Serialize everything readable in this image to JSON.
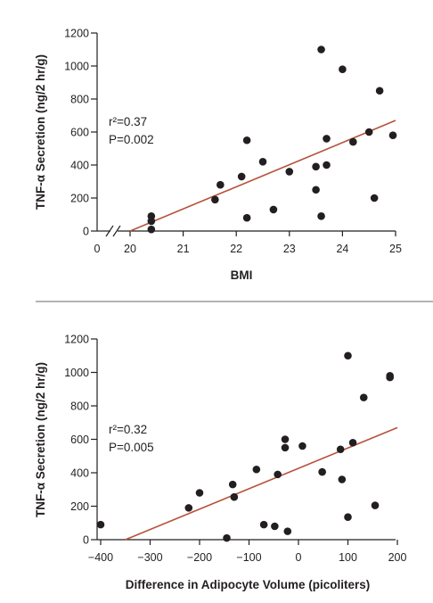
{
  "chart_data": [
    {
      "type": "scatter",
      "ylabel": "TNF-α Secretion (ng/2 hr/g)",
      "xlabel": "BMI",
      "xticks": [
        "0",
        "20",
        "21",
        "22",
        "23",
        "24",
        "25"
      ],
      "yticks": [
        "0",
        "200",
        "400",
        "600",
        "800",
        "1000",
        "1200"
      ],
      "xlim": [
        20,
        25
      ],
      "ylim": [
        0,
        1200
      ],
      "axis_break": "x axis broken between 0 and 20",
      "annotation_r2": "r²=0.37",
      "annotation_p": "P=0.002",
      "points": [
        {
          "x": 20.4,
          "y": 90
        },
        {
          "x": 20.4,
          "y": 60
        },
        {
          "x": 20.4,
          "y": 10
        },
        {
          "x": 21.6,
          "y": 190
        },
        {
          "x": 21.7,
          "y": 280
        },
        {
          "x": 22.1,
          "y": 330
        },
        {
          "x": 22.2,
          "y": 550
        },
        {
          "x": 22.2,
          "y": 80
        },
        {
          "x": 22.5,
          "y": 420
        },
        {
          "x": 22.7,
          "y": 130
        },
        {
          "x": 23.0,
          "y": 360
        },
        {
          "x": 23.5,
          "y": 390
        },
        {
          "x": 23.5,
          "y": 250
        },
        {
          "x": 23.6,
          "y": 1100
        },
        {
          "x": 23.6,
          "y": 90
        },
        {
          "x": 23.7,
          "y": 560
        },
        {
          "x": 23.7,
          "y": 400
        },
        {
          "x": 24.0,
          "y": 980
        },
        {
          "x": 24.2,
          "y": 540
        },
        {
          "x": 24.5,
          "y": 600
        },
        {
          "x": 24.6,
          "y": 200
        },
        {
          "x": 24.7,
          "y": 850
        },
        {
          "x": 24.95,
          "y": 580
        }
      ],
      "regression": {
        "x": [
          20,
          25
        ],
        "y": [
          0,
          670
        ],
        "color": "#b5533c"
      }
    },
    {
      "type": "scatter",
      "ylabel": "TNF-α Secretion (ng/2 hr/g)",
      "xlabel": "Difference in Adipocyte Volume (picoliters)",
      "xticks": [
        "−400",
        "−300",
        "−200",
        "−100",
        "0",
        "100",
        "200"
      ],
      "yticks": [
        "0",
        "200",
        "400",
        "600",
        "800",
        "1000",
        "1200"
      ],
      "xlim": [
        -400,
        200
      ],
      "ylim": [
        0,
        1200
      ],
      "annotation_r2": "r²=0.32",
      "annotation_p": "P=0.005",
      "points": [
        {
          "x": -400,
          "y": 90
        },
        {
          "x": -222,
          "y": 190
        },
        {
          "x": -200,
          "y": 280
        },
        {
          "x": -145,
          "y": 10
        },
        {
          "x": -133,
          "y": 330
        },
        {
          "x": -130,
          "y": 255
        },
        {
          "x": -85,
          "y": 420
        },
        {
          "x": -70,
          "y": 90
        },
        {
          "x": -48,
          "y": 80
        },
        {
          "x": -42,
          "y": 390
        },
        {
          "x": -27,
          "y": 600
        },
        {
          "x": -27,
          "y": 550
        },
        {
          "x": -22,
          "y": 50
        },
        {
          "x": 8,
          "y": 560
        },
        {
          "x": 48,
          "y": 405
        },
        {
          "x": 85,
          "y": 540
        },
        {
          "x": 88,
          "y": 360
        },
        {
          "x": 100,
          "y": 1100
        },
        {
          "x": 100,
          "y": 135
        },
        {
          "x": 110,
          "y": 580
        },
        {
          "x": 132,
          "y": 850
        },
        {
          "x": 155,
          "y": 205
        },
        {
          "x": 185,
          "y": 980
        },
        {
          "x": 185,
          "y": 970
        }
      ],
      "regression": {
        "x": [
          -350,
          200
        ],
        "y": [
          0,
          670
        ],
        "color": "#b5533c"
      }
    }
  ]
}
